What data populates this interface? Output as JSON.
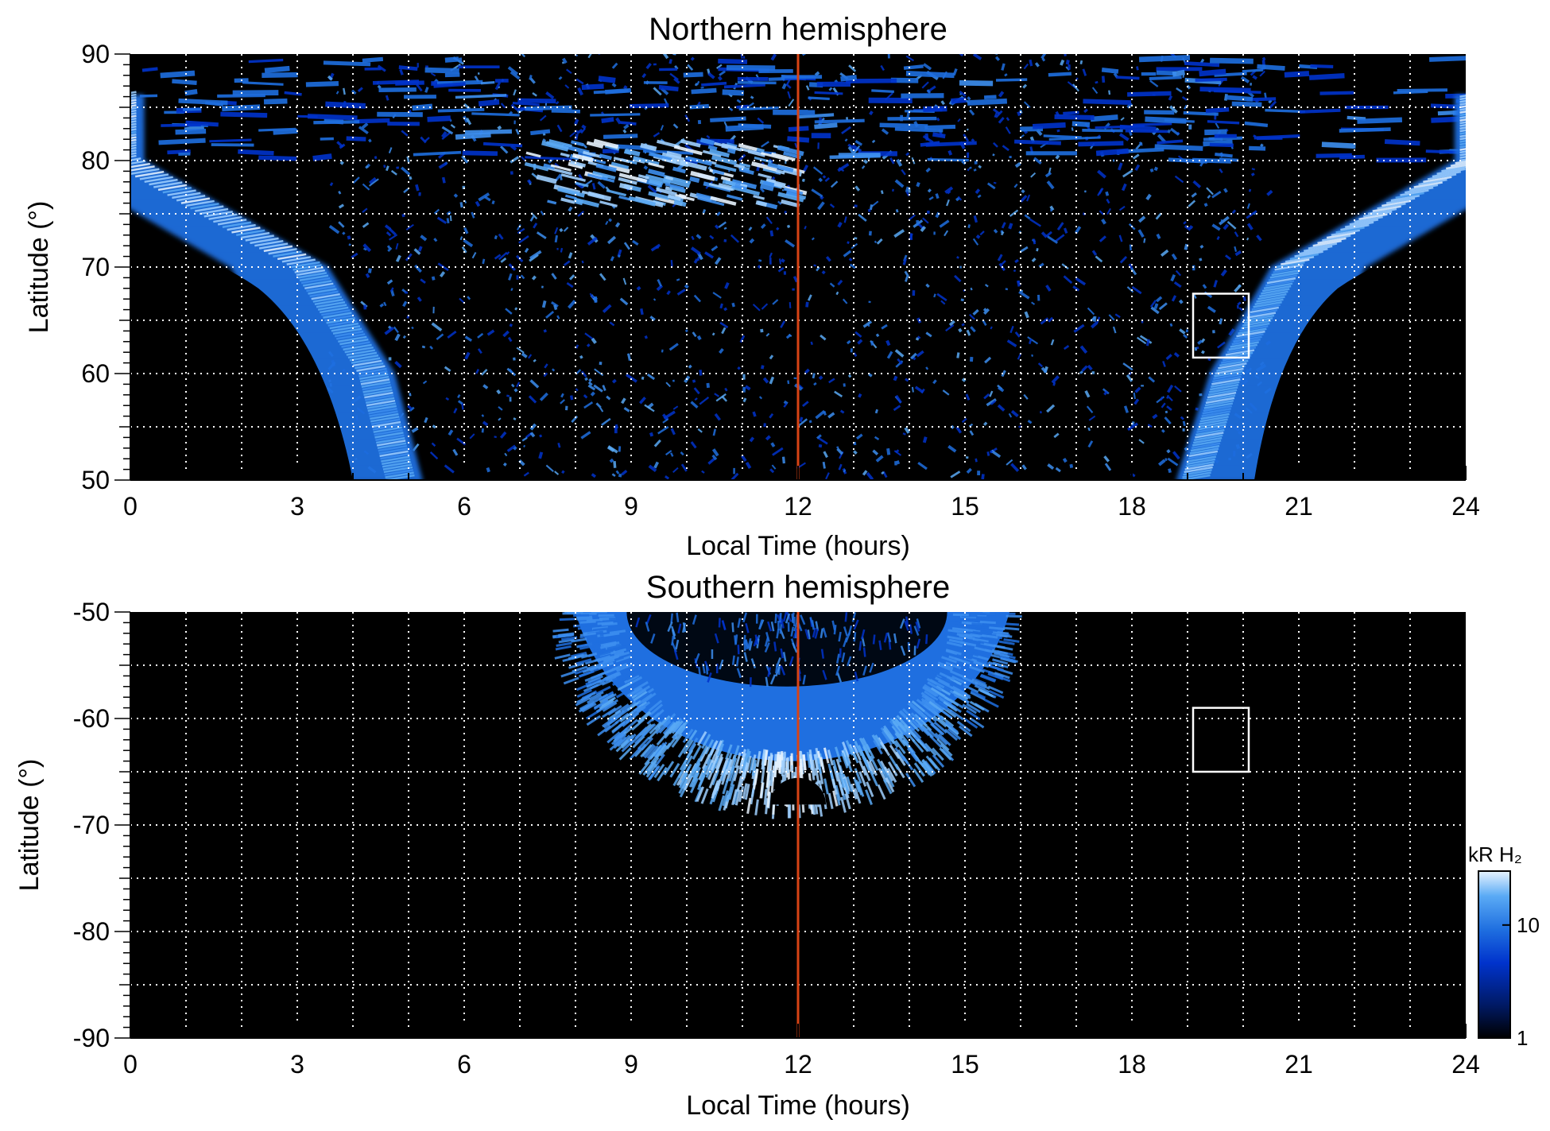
{
  "chart_data": [
    {
      "type": "heatmap",
      "title": "Northern hemisphere",
      "xlabel": "Local Time (hours)",
      "ylabel": "Latitude (°)",
      "xlim": [
        0,
        24
      ],
      "ylim": [
        50,
        90
      ],
      "x_ticks": [
        0,
        3,
        6,
        9,
        12,
        15,
        18,
        21,
        24
      ],
      "y_ticks": [
        50,
        60,
        70,
        80,
        90
      ],
      "grid": true,
      "grid_x_step_hours": 1,
      "grid_y_step_deg": 5,
      "background": "#000000",
      "marker_line": {
        "x": 12,
        "color": "#d84315"
      },
      "highlight_box": {
        "x": [
          19.1,
          20.1
        ],
        "y": [
          61.5,
          67.5
        ],
        "color": "#ffffff"
      },
      "features": {
        "oval_left": {
          "lt_at_lat80": 0.0,
          "lt_at_lat70": 3.3,
          "lt_at_lat60": 4.5,
          "lt_at_lat50": 5.0,
          "peak_kR": 25
        },
        "oval_right": {
          "lt_at_lat80": 24.0,
          "lt_at_lat70": 20.7,
          "lt_at_lat60": 19.6,
          "lt_at_lat50": 19.0,
          "peak_kR": 25
        },
        "polar_cap_noise_kR": [
          1,
          8
        ],
        "dayside_spot": {
          "lt": [
            7.0,
            11.8
          ],
          "lat": [
            76,
            82
          ],
          "peak_kR": 20
        },
        "no_data_regions": [
          {
            "lt": [
              0,
              4.0
            ],
            "lat_max": 72
          },
          {
            "lt": [
              20.5,
              24
            ],
            "lat_max": 72
          }
        ]
      }
    },
    {
      "type": "heatmap",
      "title": "Southern hemisphere",
      "xlabel": "Local Time (hours)",
      "ylabel": "Latitude (°)",
      "xlim": [
        0,
        24
      ],
      "ylim": [
        -90,
        -50
      ],
      "x_ticks": [
        0,
        3,
        6,
        9,
        12,
        15,
        18,
        21,
        24
      ],
      "y_ticks": [
        -90,
        -80,
        -70,
        -60,
        -50
      ],
      "grid": true,
      "grid_x_step_hours": 1,
      "grid_y_step_deg": 5,
      "background": "#000000",
      "marker_line": {
        "x": 12,
        "color": "#d84315"
      },
      "highlight_box": {
        "x": [
          19.1,
          20.1
        ],
        "y": [
          -65,
          -59
        ],
        "color": "#ffffff"
      },
      "features": {
        "oval_arc": {
          "lt_range": [
            8.0,
            15.8
          ],
          "lat_outer_min": -68,
          "lat_inner_min": -57,
          "center_lt": 11.8,
          "peak_kR": 25
        },
        "no_data_cap": {
          "lt": [
            11.5,
            12.5
          ],
          "lat": [
            -68,
            -65.5
          ]
        }
      }
    }
  ],
  "colorbar": {
    "unit": "kR H₂",
    "scale": "log",
    "range": [
      1,
      30
    ],
    "tick_labels": [
      "1",
      "10"
    ],
    "colors": [
      "#000000",
      "#001a66",
      "#0033cc",
      "#1f6fe0",
      "#5aaaf5",
      "#e8f4ff"
    ]
  }
}
